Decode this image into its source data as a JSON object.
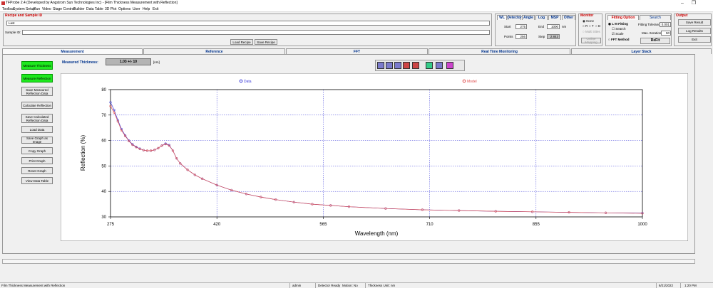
{
  "window": {
    "title": "TFProbe 2.4 (Developed by Angstrom Sun Technologies Inc) - [Film Thickness Measurement with Reflection]",
    "minimize": "–",
    "restore": "❐"
  },
  "menu": [
    "Toolbar",
    "System Setup",
    "Run",
    "Video",
    "Stage Control",
    "Builder",
    "Data Table",
    "3D Plot",
    "Options",
    "User",
    "Help",
    "Exit"
  ],
  "recipe": {
    "group_label": "Recipe and Sample ID",
    "recipe_value": "Last",
    "sample_label": "Sample ID:",
    "sample_value": "",
    "load_button": "Load Recipe",
    "save_button": "Save Recipe"
  },
  "wl": {
    "tabs": [
      "WL",
      "Detector",
      "Angle",
      "Log",
      "MSP",
      "Other"
    ],
    "start_label": "Start",
    "start_value": "275",
    "end_label": "End",
    "end_value": "1000",
    "end_unit": "nm",
    "points_label": "Points",
    "points_value": "256",
    "step_label": "Step",
    "step_value": "2.843"
  },
  "monitor": {
    "label": "Monitor",
    "options": [
      "None",
      "R",
      "T",
      "D"
    ],
    "multi_sites": "Multi Sites",
    "online_mapping": "Online Mapping"
  },
  "fitting": {
    "tabs": [
      "Fitting Option",
      "Search"
    ],
    "lm_fitting": "L M Fitting",
    "search": "Search",
    "scale": "Scale",
    "fft_method": "FFT Method",
    "tolerance_label": "Fitting Tolerance",
    "tolerance_value": "0.001",
    "max_iter_label": "Max. Iteration",
    "max_iter_value": "50",
    "refit_button": "ReFit"
  },
  "output": {
    "label": "Output",
    "save_result": "Save Result",
    "log_result": "Log Results",
    "exit": "Exit"
  },
  "main_tabs": [
    "Measurement",
    "Reference",
    "FFT",
    "Real Time Monitoring",
    "Layer Stack"
  ],
  "side_buttons": [
    "Measure Thickness",
    "Measure Reflection",
    "Save Measured Reflection Data",
    "Calculate Reflection",
    "Save Calculated Reflection Data",
    "Load Data",
    "Save Graph as Image",
    "Copy Graph",
    "Print Graph",
    "Reset Graph",
    "View Data Table"
  ],
  "thickness": {
    "label": "Measured Thickness:",
    "value": "1.03 +/- 10",
    "unit": "[nm]"
  },
  "toolbar_icons": [
    "zoom-x-icon",
    "zoom-y-icon",
    "zoom-xy-icon",
    "pan-x-icon",
    "pan-y-icon",
    "reset-zoom-icon",
    "data-cursor-icon",
    "line-style-icon"
  ],
  "colors": {
    "data": "#3a3ad9",
    "model": "#e05050",
    "grid": "#3a3ad9",
    "active_button": "#1ee81e"
  },
  "chart_data": {
    "type": "line",
    "xlabel": "Wavelength (nm)",
    "ylabel": "Reflection (%)",
    "xlim": [
      275,
      1000
    ],
    "ylim": [
      30,
      80
    ],
    "xticks": [
      275,
      420,
      565,
      710,
      855,
      1000
    ],
    "yticks": [
      30,
      40,
      50,
      60,
      70,
      80
    ],
    "grid": true,
    "legend": "top",
    "series": [
      {
        "name": "Data",
        "marker": "circle",
        "color": "#3a3ad9",
        "x": [
          275,
          280,
          285,
          290,
          295,
          300,
          305,
          310,
          315,
          320,
          325,
          330,
          335,
          340,
          345,
          350,
          355,
          360,
          365,
          370,
          380,
          390,
          400,
          420,
          440,
          460,
          480,
          500,
          525,
          550,
          575,
          600,
          650,
          700,
          750,
          800,
          850,
          900,
          950,
          1000
        ],
        "y": [
          75,
          72,
          68,
          64.5,
          62,
          60,
          58.5,
          57.5,
          56.8,
          56.2,
          56,
          56,
          56.3,
          57,
          58,
          58.8,
          58.2,
          56,
          53,
          51,
          48.5,
          46.5,
          45,
          42.5,
          40.5,
          39,
          37.8,
          36.8,
          35.8,
          35,
          34.5,
          34,
          33.3,
          32.8,
          32.5,
          32.2,
          32,
          31.8,
          31.6,
          31.5
        ]
      },
      {
        "name": "Model",
        "marker": "circle",
        "color": "#e05050",
        "x": [
          275,
          280,
          285,
          290,
          295,
          300,
          305,
          310,
          315,
          320,
          325,
          330,
          335,
          340,
          345,
          350,
          355,
          360,
          365,
          370,
          380,
          390,
          400,
          420,
          440,
          460,
          480,
          500,
          525,
          550,
          575,
          600,
          650,
          700,
          750,
          800,
          850,
          900,
          950,
          1000
        ],
        "y": [
          73.5,
          71,
          67.5,
          64,
          61.8,
          59.8,
          58.3,
          57.4,
          56.7,
          56.2,
          56,
          56,
          56.3,
          57,
          58,
          58.6,
          58,
          56,
          53,
          51,
          48.5,
          46.5,
          45,
          42.5,
          40.5,
          39,
          37.8,
          36.8,
          35.8,
          35,
          34.5,
          34,
          33.3,
          32.8,
          32.5,
          32.2,
          32,
          31.8,
          31.6,
          31.4
        ]
      }
    ]
  },
  "status": {
    "left": "Film Thickness Measurement with Reflection",
    "user": "admin",
    "detector": "Detector Ready",
    "motion": "Motion: No",
    "unit": "Thickness Unit: nm",
    "date": "6/21/2022",
    "time": "1:20 PM"
  }
}
